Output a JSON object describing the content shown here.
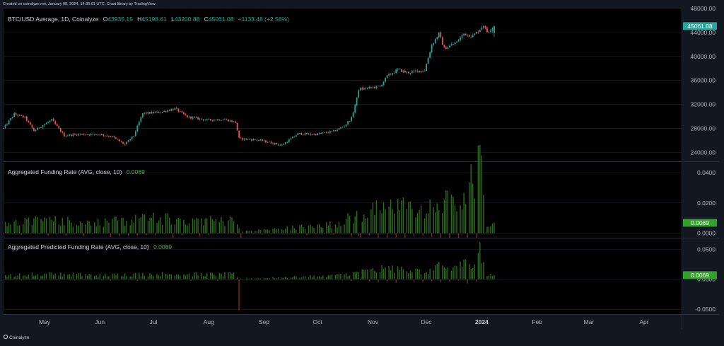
{
  "header_note": "Created on coinalyze.net, January 08, 2024, 14:36:01 UTC, Chart library by TradingView",
  "footer_brand": "Coinalyze",
  "colors": {
    "background": "#000000",
    "frame": "#131722",
    "grid": "#1e222d",
    "up": "#26a69a",
    "down": "#ef5350",
    "funding_pos": "#2f6b1f",
    "funding_neg": "#7a2a2a",
    "badge_price": "#26a69a",
    "badge_funding": "#33a02c",
    "value_green": "#4caf50"
  },
  "price_pane": {
    "legend_title": "BTC/USD Average, 1D, Coinalyze",
    "o_label": "O",
    "o_value": "43935.15",
    "h_label": "H",
    "h_value": "45198.61",
    "l_label": "L",
    "l_value": "43200.88",
    "c_label": "C",
    "c_value": "45061.08",
    "change": "+1133.48 (+2.58%)",
    "badge": "45061.08",
    "ticks": [
      "48000.00",
      "44000.00",
      "40000.00",
      "36000.00",
      "32000.00",
      "28000.00",
      "24000.00"
    ]
  },
  "funding_pane": {
    "legend_title": "Aggregated Funding Rate (AVG, close, 10)",
    "value": "0.0069",
    "badge": "0.0069",
    "ticks": [
      "0.0400",
      "0.0200",
      "0.0000"
    ]
  },
  "predicted_pane": {
    "legend_title": "Aggregated Predicted Funding Rate (AVG, close, 10)",
    "value": "0.0069",
    "badge": "0.0069",
    "ticks": [
      "0.0500",
      "0.0000",
      "-0.0500"
    ]
  },
  "time_axis": {
    "labels": [
      "May",
      "Jun",
      "Jul",
      "Aug",
      "Sep",
      "Oct",
      "Nov",
      "Dec",
      "2024",
      "Feb",
      "Mar",
      "Apr"
    ]
  },
  "chart_data": [
    {
      "type": "candlestick",
      "title": "BTC/USD Average, 1D, Coinalyze",
      "x_range": [
        "2023-04-08",
        "2024-04-22"
      ],
      "ylim": [
        22500,
        48000
      ],
      "anchors": [
        [
          "2023-04-08",
          28000
        ],
        [
          "2023-04-14",
          30400
        ],
        [
          "2023-04-20",
          29800
        ],
        [
          "2023-04-25",
          27600
        ],
        [
          "2023-05-05",
          29400
        ],
        [
          "2023-05-12",
          26800
        ],
        [
          "2023-05-20",
          27000
        ],
        [
          "2023-06-01",
          27000
        ],
        [
          "2023-06-08",
          26600
        ],
        [
          "2023-06-15",
          25300
        ],
        [
          "2023-06-20",
          26800
        ],
        [
          "2023-06-25",
          30500
        ],
        [
          "2023-07-05",
          30700
        ],
        [
          "2023-07-13",
          31300
        ],
        [
          "2023-07-20",
          29900
        ],
        [
          "2023-07-31",
          29400
        ],
        [
          "2023-08-10",
          29500
        ],
        [
          "2023-08-16",
          29000
        ],
        [
          "2023-08-18",
          26300
        ],
        [
          "2023-08-30",
          26000
        ],
        [
          "2023-09-11",
          25200
        ],
        [
          "2023-09-20",
          27100
        ],
        [
          "2023-09-30",
          27000
        ],
        [
          "2023-10-10",
          27500
        ],
        [
          "2023-10-16",
          28400
        ],
        [
          "2023-10-20",
          29700
        ],
        [
          "2023-10-23",
          33000
        ],
        [
          "2023-10-24",
          34500
        ],
        [
          "2023-11-05",
          35000
        ],
        [
          "2023-11-09",
          36700
        ],
        [
          "2023-11-15",
          37800
        ],
        [
          "2023-11-20",
          37300
        ],
        [
          "2023-11-30",
          37700
        ],
        [
          "2023-12-04",
          41900
        ],
        [
          "2023-12-08",
          43800
        ],
        [
          "2023-12-11",
          41300
        ],
        [
          "2023-12-18",
          42400
        ],
        [
          "2023-12-22",
          43800
        ],
        [
          "2023-12-27",
          43400
        ],
        [
          "2024-01-02",
          45200
        ],
        [
          "2024-01-04",
          44100
        ],
        [
          "2024-01-08",
          45061
        ]
      ],
      "last_candle": {
        "open": 43935.15,
        "high": 45198.61,
        "low": 43200.88,
        "close": 45061.08,
        "change": 1133.48,
        "change_pct": 2.58
      }
    },
    {
      "type": "bar",
      "title": "Aggregated Funding Rate (AVG, close, 10)",
      "ylim": [
        -0.003,
        0.047
      ],
      "anchors": [
        [
          "2023-04-08",
          0.006
        ],
        [
          "2023-05-01",
          0.0085
        ],
        [
          "2023-06-01",
          0.007
        ],
        [
          "2023-07-01",
          0.0095
        ],
        [
          "2023-08-15",
          0.008
        ],
        [
          "2023-08-19",
          0.001
        ],
        [
          "2023-09-10",
          0.003
        ],
        [
          "2023-10-10",
          0.006
        ],
        [
          "2023-10-20",
          0.01
        ],
        [
          "2023-11-05",
          0.016
        ],
        [
          "2023-11-15",
          0.019
        ],
        [
          "2023-11-30",
          0.012
        ],
        [
          "2023-12-08",
          0.022
        ],
        [
          "2023-12-15",
          0.02
        ],
        [
          "2023-12-22",
          0.026
        ],
        [
          "2023-12-28",
          0.04
        ],
        [
          "2024-01-01",
          0.042
        ],
        [
          "2024-01-03",
          0.007
        ],
        [
          "2024-01-08",
          0.0069
        ]
      ],
      "latest": 0.0069
    },
    {
      "type": "bar",
      "title": "Aggregated Predicted Funding Rate (AVG, close, 10)",
      "ylim": [
        -0.058,
        0.068
      ],
      "anchors": [
        [
          "2023-04-08",
          0.006
        ],
        [
          "2023-05-01",
          0.009
        ],
        [
          "2023-06-01",
          0.007
        ],
        [
          "2023-07-01",
          0.009
        ],
        [
          "2023-08-15",
          0.008
        ],
        [
          "2023-08-19",
          0.001
        ],
        [
          "2023-09-10",
          0.003
        ],
        [
          "2023-10-10",
          0.006
        ],
        [
          "2023-10-20",
          0.01
        ],
        [
          "2023-11-05",
          0.016
        ],
        [
          "2023-11-15",
          0.018
        ],
        [
          "2023-11-30",
          0.012
        ],
        [
          "2023-12-08",
          0.02
        ],
        [
          "2023-12-15",
          0.018
        ],
        [
          "2023-12-22",
          0.024
        ],
        [
          "2023-12-28",
          0.035
        ],
        [
          "2024-01-01",
          0.04
        ],
        [
          "2024-01-03",
          0.007
        ],
        [
          "2024-01-08",
          0.0069
        ]
      ],
      "latest": 0.0069
    }
  ]
}
